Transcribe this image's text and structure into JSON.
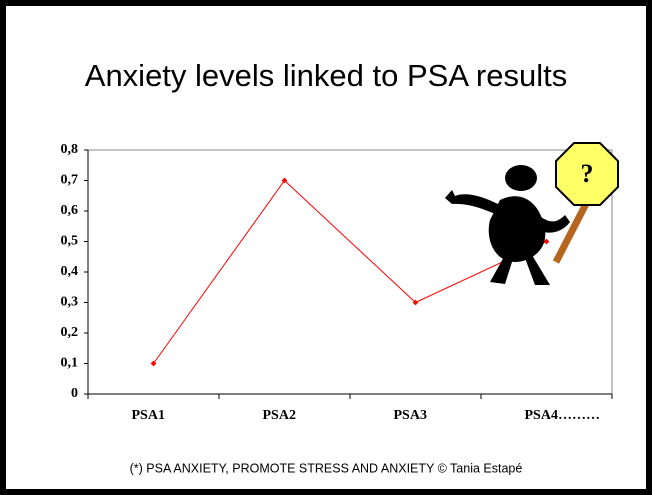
{
  "chart_data": {
    "type": "line",
    "title": "Anxiety levels linked to PSA results",
    "categories": [
      "PSA1",
      "PSA2",
      "PSA3",
      "PSA4………"
    ],
    "values": [
      0.1,
      0.7,
      0.3,
      0.5
    ],
    "color": "#ff0000",
    "ylim": [
      0,
      0.8
    ],
    "yticks": [
      0,
      {
        "value": 0.1,
        "label": "0,1"
      },
      {
        "value": 0.2,
        "label": "0,2"
      },
      {
        "value": 0.3,
        "label": "0,3"
      },
      {
        "value": 0.4,
        "label": "0,4"
      },
      {
        "value": 0.5,
        "label": "0,5"
      },
      {
        "value": 0.6,
        "label": "0,6"
      },
      {
        "value": 0.7,
        "label": "0,7"
      },
      {
        "value": 0.8,
        "label": "0,8"
      }
    ],
    "grid": false,
    "sign_label": "?",
    "footnote": "(*) PSA ANXIETY, PROMOTE STRESS AND ANXIETY © Tania Estapé"
  }
}
